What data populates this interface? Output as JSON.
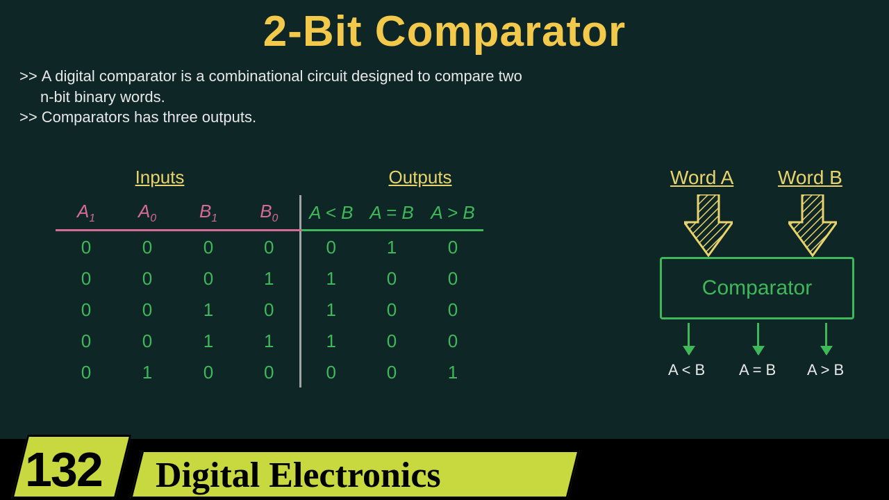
{
  "title": "2-Bit Comparator",
  "bullets": {
    "b1a": "A digital comparator is a combinational circuit designed to compare two",
    "b1b": "n-bit binary words.",
    "b2": "Comparators has three outputs."
  },
  "truth_table": {
    "section_inputs": "Inputs",
    "section_outputs": "Outputs",
    "headers": {
      "a1": "A",
      "a1s": "1",
      "a0": "A",
      "a0s": "0",
      "b1": "B",
      "b1s": "1",
      "b0": "B",
      "b0s": "0",
      "lt": "A < B",
      "eq": "A = B",
      "gt": "A > B"
    },
    "rows": [
      {
        "a1": "0",
        "a0": "0",
        "b1": "0",
        "b0": "0",
        "lt": "0",
        "eq": "1",
        "gt": "0"
      },
      {
        "a1": "0",
        "a0": "0",
        "b1": "0",
        "b0": "1",
        "lt": "1",
        "eq": "0",
        "gt": "0"
      },
      {
        "a1": "0",
        "a0": "0",
        "b1": "1",
        "b0": "0",
        "lt": "1",
        "eq": "0",
        "gt": "0"
      },
      {
        "a1": "0",
        "a0": "0",
        "b1": "1",
        "b0": "1",
        "lt": "1",
        "eq": "0",
        "gt": "0"
      },
      {
        "a1": "0",
        "a0": "1",
        "b1": "0",
        "b0": "0",
        "lt": "0",
        "eq": "0",
        "gt": "1"
      }
    ]
  },
  "diagram": {
    "wordA": "Word A",
    "wordB": "Word B",
    "box": "Comparator",
    "out_lt": "A < B",
    "out_eq": "A = B",
    "out_gt": "A > B",
    "arrow_stroke": "#e8d36c",
    "arrow_hatch": "#e8d36c",
    "box_color": "#3fb85a"
  },
  "footer": {
    "number": "132",
    "label": "Digital Electronics"
  },
  "colors": {
    "bg": "#0e2626",
    "title": "#f3c94c",
    "pink": "#d66b96",
    "green": "#3fb85a",
    "yellow": "#e8d36c",
    "lime": "#c7d93f"
  }
}
